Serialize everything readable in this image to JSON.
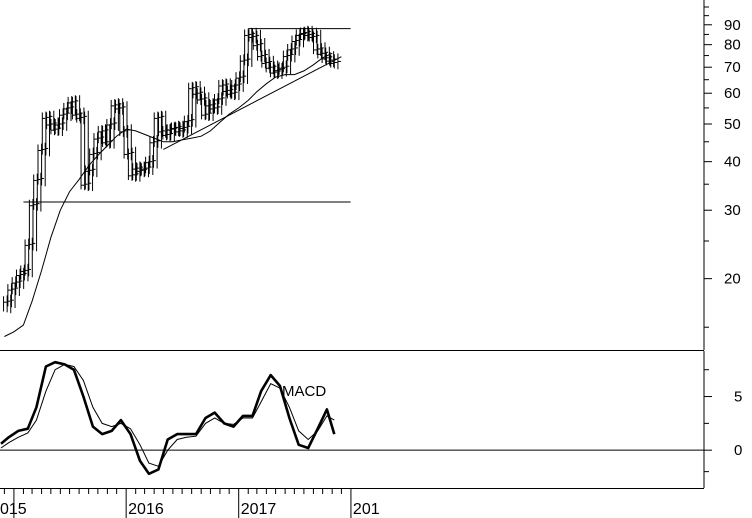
{
  "chart_data": [
    {
      "type": "line",
      "panel": "price",
      "scale": "log",
      "title": "",
      "xlabel": "",
      "ylabel": "",
      "ylim": [
        13.5,
        100
      ],
      "y_ticks": [
        "90",
        "80",
        "70",
        "60",
        "50",
        "40",
        "30",
        "20"
      ],
      "x_ticks": [
        "015",
        "2016",
        "2017",
        "201"
      ],
      "grid": false,
      "series": [
        {
          "style": "bars",
          "x": [
            "2014-12-10",
            "2014-12-24",
            "2015-01-07",
            "2015-01-21",
            "2015-02-04",
            "2015-02-18",
            "2015-03-04",
            "2015-03-18",
            "2015-04-01",
            "2015-04-15",
            "2015-04-29",
            "2015-05-13",
            "2015-05-27",
            "2015-06-10",
            "2015-06-24",
            "2015-07-08",
            "2015-07-22",
            "2015-08-05",
            "2015-08-19",
            "2015-09-02",
            "2015-09-16",
            "2015-09-30",
            "2015-10-14",
            "2015-10-28",
            "2015-11-11",
            "2015-11-25",
            "2015-12-09",
            "2015-12-23",
            "2016-01-06",
            "2016-01-20",
            "2016-02-03",
            "2016-02-17",
            "2016-03-02",
            "2016-03-16",
            "2016-03-30",
            "2016-04-13",
            "2016-04-27",
            "2016-05-11",
            "2016-05-25",
            "2016-06-08",
            "2016-06-22",
            "2016-07-06",
            "2016-07-20",
            "2016-08-03",
            "2016-08-17",
            "2016-08-31",
            "2016-09-14",
            "2016-09-28",
            "2016-10-12",
            "2016-10-26",
            "2016-11-09",
            "2016-11-23",
            "2016-12-07",
            "2016-12-21",
            "2017-01-04",
            "2017-01-18",
            "2017-02-01",
            "2017-02-15",
            "2017-03-01",
            "2017-03-15",
            "2017-03-29",
            "2017-04-12",
            "2017-04-26",
            "2017-05-10",
            "2017-05-24",
            "2017-06-07",
            "2017-06-21",
            "2017-07-05",
            "2017-07-19",
            "2017-08-02",
            "2017-08-16",
            "2017-08-30",
            "2017-09-13",
            "2017-09-27",
            "2017-10-11",
            "2017-10-25",
            "2017-11-08"
          ],
          "values": [
            17.5,
            18.8,
            19.6,
            20.5,
            21.0,
            24.5,
            31.0,
            36.0,
            43.0,
            52.0,
            50.0,
            48.5,
            50.0,
            53.0,
            55.0,
            57.0,
            53.0,
            52.0,
            35.0,
            38.0,
            42.0,
            46.0,
            48.0,
            45.0,
            50.0,
            56.0,
            55.0,
            48.0,
            42.0,
            37.0,
            38.5,
            38.0,
            38.5,
            40.0,
            45.0,
            52.0,
            48.0,
            47.0,
            48.5,
            49.0,
            48.0,
            49.0,
            51.0,
            62.0,
            60.0,
            58.0,
            53.0,
            56.0,
            55.0,
            58.0,
            63.0,
            61.0,
            60.0,
            63.0,
            66.0,
            73.0,
            85.0,
            84.0,
            80.0,
            75.0,
            72.0,
            70.0,
            68.0,
            69.0,
            70.0,
            75.0,
            78.0,
            82.0,
            85.0,
            86.0,
            85.0,
            84.0,
            78.0,
            76.0,
            74.0,
            73.0,
            72.0
          ]
        },
        {
          "name": "",
          "style": "moving-average",
          "x": [
            "2014-12-01",
            "2015-01-01",
            "2015-02-01",
            "2015-03-01",
            "2015-04-01",
            "2015-05-01",
            "2015-06-01",
            "2015-07-01",
            "2015-08-01",
            "2015-09-01",
            "2015-10-01",
            "2015-11-01",
            "2015-12-01",
            "2016-01-01",
            "2016-02-01",
            "2016-03-01",
            "2016-04-01",
            "2016-05-01",
            "2016-06-01",
            "2016-07-01",
            "2016-08-01",
            "2016-09-01",
            "2016-10-01",
            "2016-11-01",
            "2016-12-01",
            "2017-01-01",
            "2017-02-01",
            "2017-03-01",
            "2017-04-01",
            "2017-05-01",
            "2017-06-01",
            "2017-07-01",
            "2017-08-01",
            "2017-09-01",
            "2017-10-01",
            "2017-11-01"
          ],
          "values": [
            14.2,
            14.6,
            15.2,
            17.5,
            21.0,
            25.5,
            30.0,
            33.5,
            36.0,
            39.0,
            41.5,
            44.0,
            46.5,
            48.5,
            48.0,
            47.0,
            46.0,
            45.0,
            45.0,
            45.5,
            46.0,
            46.5,
            48.0,
            50.5,
            53.0,
            55.0,
            57.5,
            60.5,
            63.5,
            66.0,
            67.0,
            67.0,
            68.5,
            71.0,
            74.0,
            76.0
          ]
        },
        {
          "name": "",
          "style": "trendline",
          "x": [
            "2016-05-01",
            "2017-12-01"
          ],
          "values": [
            43.0,
            74.5
          ]
        }
      ],
      "horizontal_lines": [
        {
          "value": 31.5,
          "from": "2015-02-01",
          "to": "2017-12-31"
        },
        {
          "value": 88.0,
          "from": "2017-02-01",
          "to": "2017-12-31"
        }
      ]
    },
    {
      "type": "line",
      "panel": "indicator",
      "annotation": "MACD",
      "title": "",
      "ylim": [
        -2.5,
        8.5
      ],
      "y_ticks": [
        "5",
        "0"
      ],
      "reference_line": 0,
      "series": [
        {
          "name": "",
          "style": "thick",
          "x": [
            "2014-11-20",
            "2014-12-15",
            "2015-01-15",
            "2015-02-15",
            "2015-03-15",
            "2015-04-15",
            "2015-05-15",
            "2015-06-15",
            "2015-07-15",
            "2015-08-15",
            "2015-09-15",
            "2015-10-15",
            "2015-11-15",
            "2015-12-15",
            "2016-01-15",
            "2016-02-15",
            "2016-03-15",
            "2016-04-15",
            "2016-05-15",
            "2016-06-15",
            "2016-07-15",
            "2016-08-15",
            "2016-09-15",
            "2016-10-15",
            "2016-11-15",
            "2016-12-15",
            "2017-01-15",
            "2017-02-15",
            "2017-03-15",
            "2017-04-15",
            "2017-05-15",
            "2017-06-15",
            "2017-07-15",
            "2017-08-15",
            "2017-09-15",
            "2017-10-15",
            "2017-11-08"
          ],
          "values": [
            0.6,
            1.2,
            1.8,
            2.0,
            4.0,
            7.8,
            8.2,
            8.0,
            7.5,
            5.0,
            2.2,
            1.5,
            1.8,
            2.8,
            1.5,
            -1.0,
            -2.2,
            -1.8,
            1.0,
            1.5,
            1.5,
            1.5,
            3.0,
            3.5,
            2.5,
            2.2,
            3.2,
            3.2,
            5.5,
            7.0,
            6.0,
            3.0,
            0.5,
            0.2,
            2.0,
            3.8,
            1.5
          ]
        },
        {
          "name": "",
          "style": "thin",
          "x": [
            "2014-11-20",
            "2014-12-15",
            "2015-01-15",
            "2015-02-15",
            "2015-03-15",
            "2015-04-15",
            "2015-05-15",
            "2015-06-15",
            "2015-07-15",
            "2015-08-15",
            "2015-09-15",
            "2015-10-15",
            "2015-11-15",
            "2015-12-15",
            "2016-01-15",
            "2016-02-15",
            "2016-03-15",
            "2016-04-15",
            "2016-05-15",
            "2016-06-15",
            "2016-07-15",
            "2016-08-15",
            "2016-09-15",
            "2016-10-15",
            "2016-11-15",
            "2016-12-15",
            "2017-01-15",
            "2017-02-15",
            "2017-03-15",
            "2017-04-15",
            "2017-05-15",
            "2017-06-15",
            "2017-07-15",
            "2017-08-15",
            "2017-09-15",
            "2017-10-15",
            "2017-11-08"
          ],
          "values": [
            0.2,
            0.7,
            1.2,
            1.6,
            2.8,
            5.5,
            7.5,
            8.0,
            7.8,
            6.5,
            4.0,
            2.5,
            2.2,
            2.5,
            2.0,
            0.5,
            -1.2,
            -1.5,
            0.0,
            1.0,
            1.2,
            1.3,
            2.5,
            3.0,
            2.5,
            2.4,
            3.0,
            3.0,
            4.5,
            6.2,
            5.8,
            4.0,
            1.8,
            1.0,
            1.8,
            3.2,
            2.8
          ]
        }
      ]
    }
  ]
}
